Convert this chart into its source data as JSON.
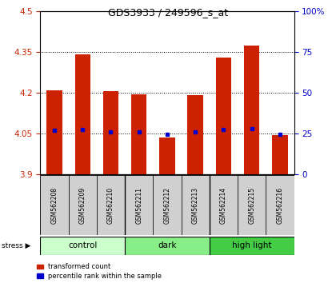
{
  "title": "GDS3933 / 249596_s_at",
  "samples": [
    "GSM562208",
    "GSM562209",
    "GSM562210",
    "GSM562211",
    "GSM562212",
    "GSM562213",
    "GSM562214",
    "GSM562215",
    "GSM562216"
  ],
  "bar_values": [
    4.21,
    4.34,
    4.205,
    4.195,
    4.035,
    4.19,
    4.33,
    4.375,
    4.045
  ],
  "percentile_values": [
    4.06,
    4.065,
    4.055,
    4.055,
    4.048,
    4.054,
    4.063,
    4.067,
    4.046
  ],
  "ymin": 3.9,
  "ymax": 4.5,
  "bar_color": "#cc2200",
  "percentile_color": "#0000cc",
  "bar_width": 0.55,
  "groups": [
    {
      "label": "control",
      "start": 0,
      "end": 3,
      "color": "#ccffcc"
    },
    {
      "label": "dark",
      "start": 3,
      "end": 6,
      "color": "#88ee88"
    },
    {
      "label": "high light",
      "start": 6,
      "end": 9,
      "color": "#44cc44"
    }
  ],
  "left_yticks": [
    3.9,
    4.05,
    4.2,
    4.35,
    4.5
  ],
  "right_yticks": [
    0,
    25,
    50,
    75,
    100
  ],
  "right_ytick_labels": [
    "0",
    "25",
    "50",
    "75",
    "100%"
  ]
}
